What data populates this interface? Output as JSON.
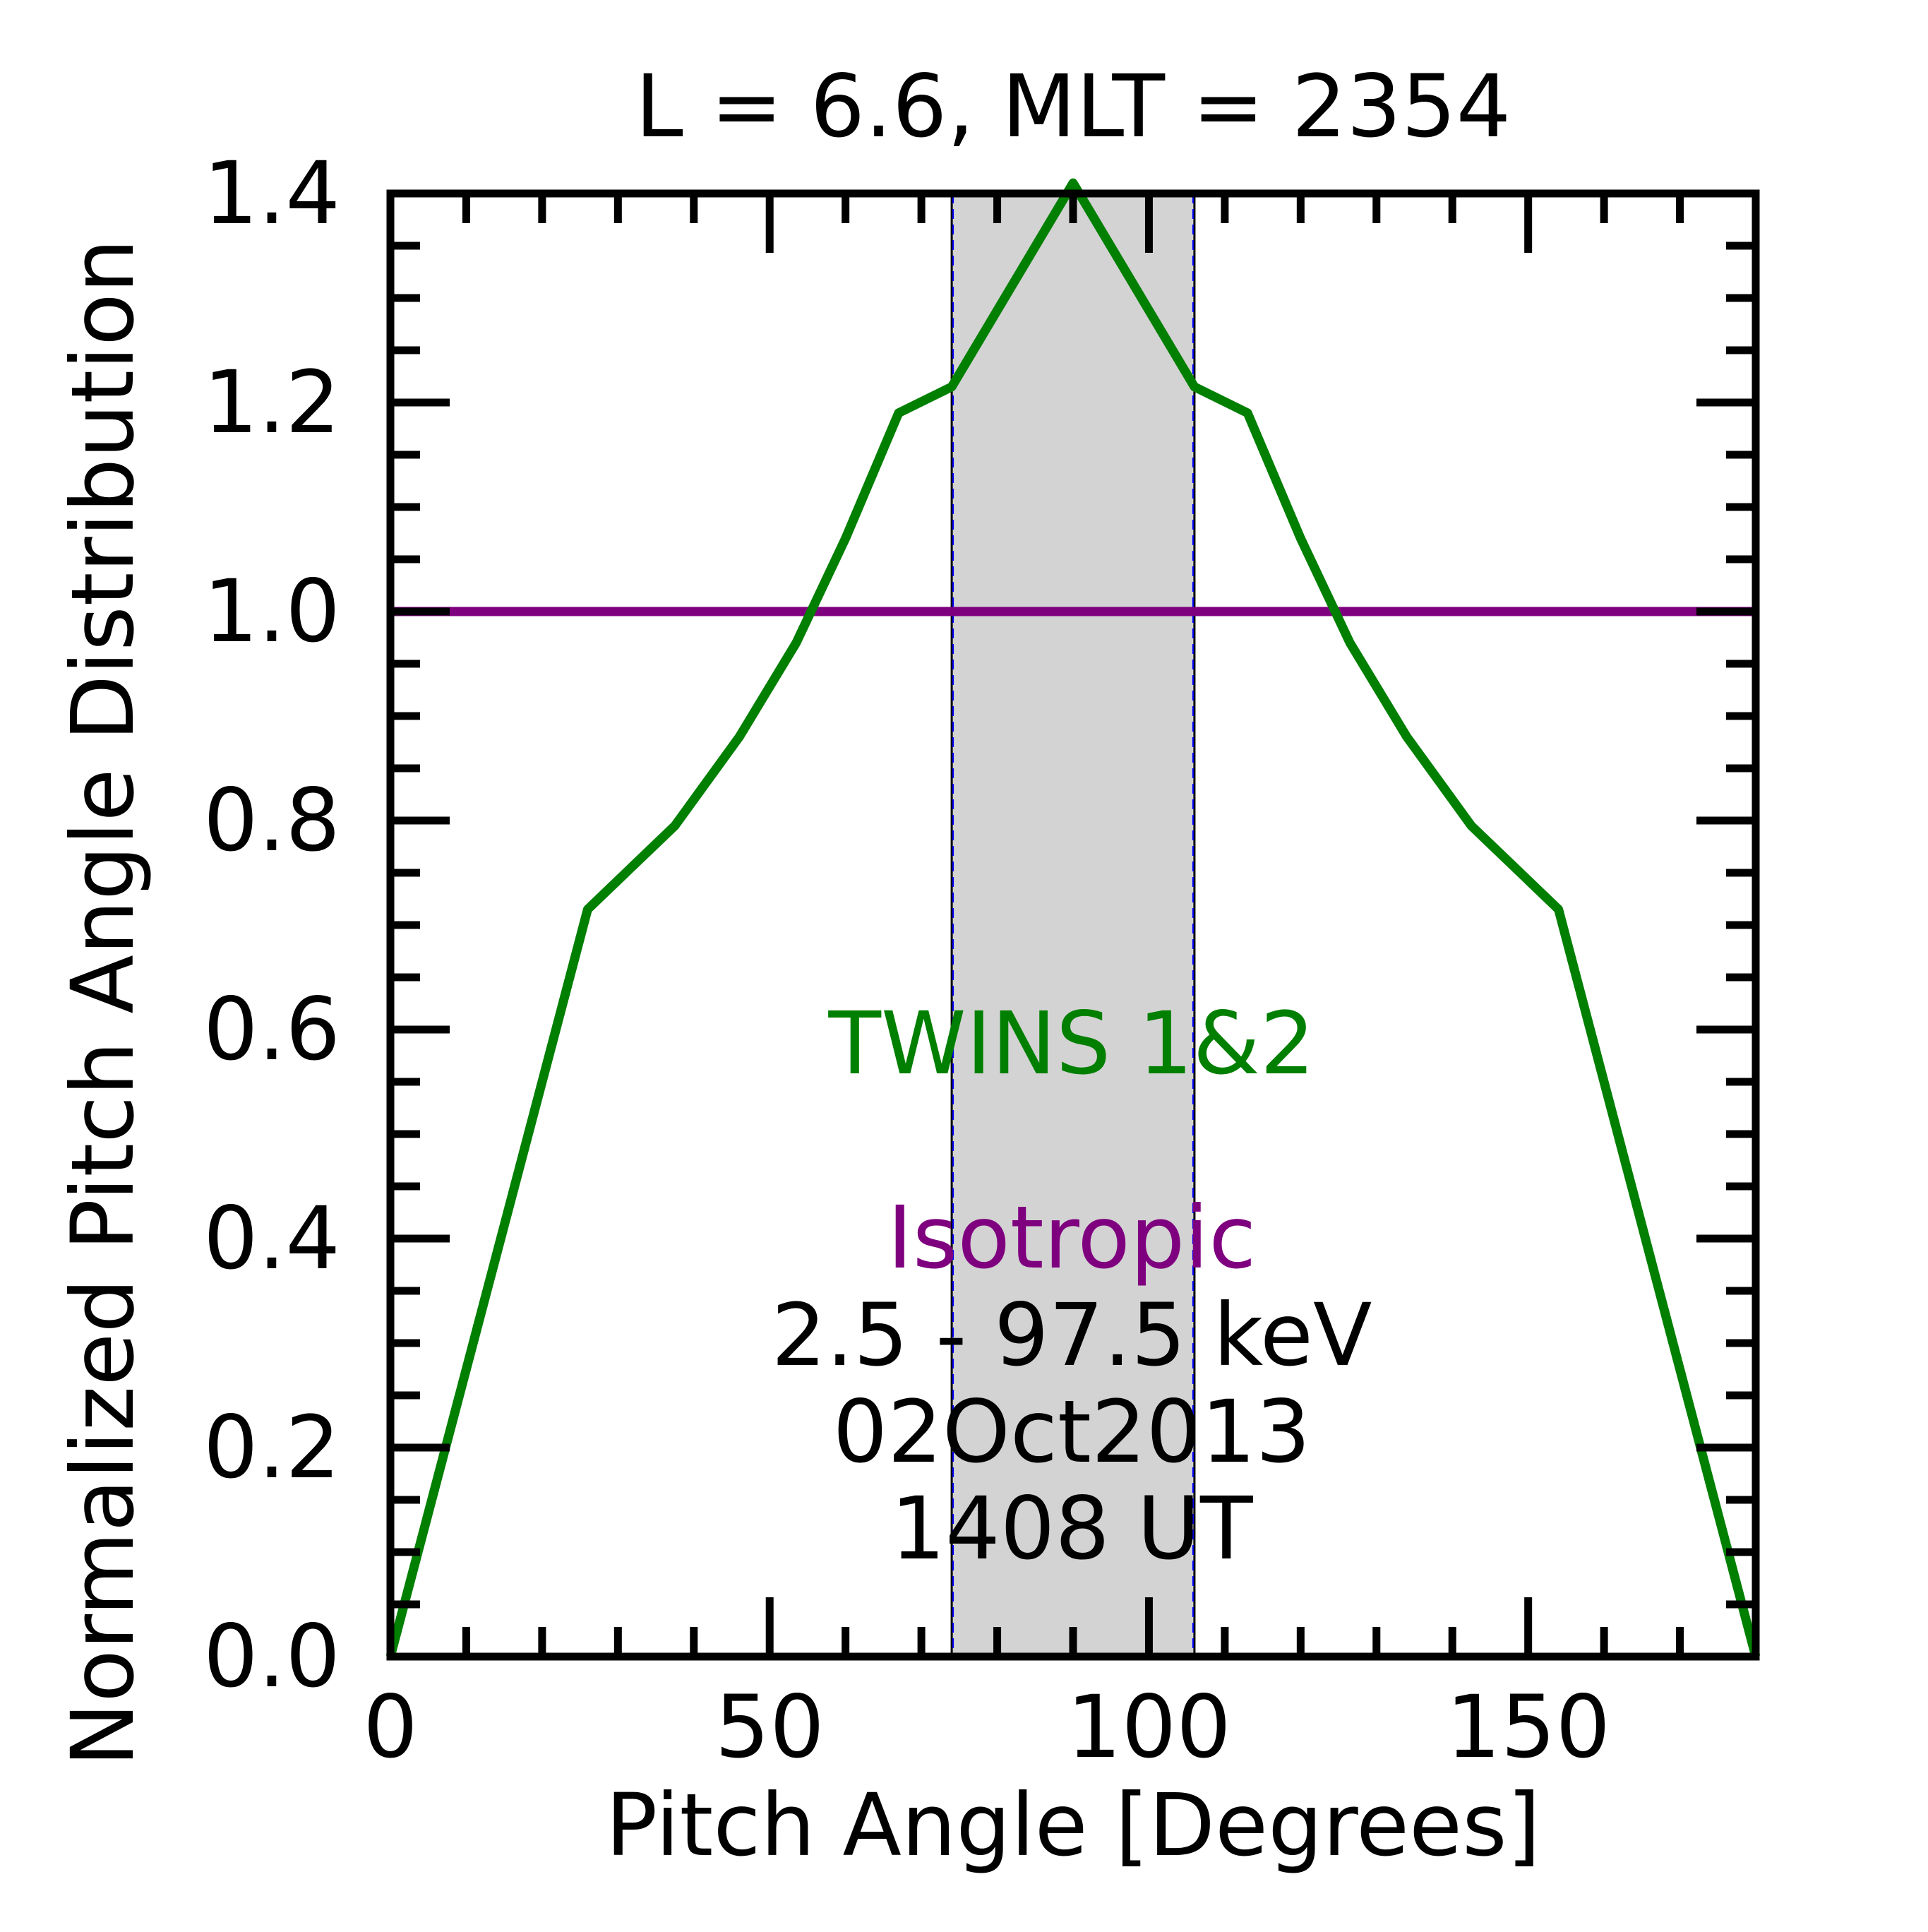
{
  "chart_data": {
    "type": "line",
    "title": "L =  6.6, MLT = 2354",
    "xlabel": "Pitch Angle [Degrees]",
    "ylabel": "Normalized Pitch Angle Distribution",
    "xlim": [
      0,
      180
    ],
    "ylim": [
      0,
      1.4
    ],
    "x_ticks": [
      0,
      50,
      100,
      150
    ],
    "x_tick_labels": [
      "0",
      "50",
      "100",
      "150"
    ],
    "x_minor_step": 10,
    "y_ticks": [
      0.0,
      0.2,
      0.4,
      0.6,
      0.8,
      1.0,
      1.2,
      1.4
    ],
    "y_tick_labels": [
      "0.0",
      "0.2",
      "0.4",
      "0.6",
      "0.8",
      "1.0",
      "1.2",
      "1.4"
    ],
    "y_minor_step": 0.05,
    "grid": false,
    "shaded_band": {
      "x": [
        74,
        106
      ],
      "color": "#d3d3d3"
    },
    "series": [
      {
        "name": "TWINS 1&2",
        "color": "#007f00",
        "x": [
          0,
          26,
          37.5,
          46,
          53.5,
          60,
          67,
          74,
          90,
          106,
          113,
          120,
          126.5,
          134,
          142.5,
          154,
          180
        ],
        "y": [
          0,
          0.715,
          0.795,
          0.88,
          0.97,
          1.07,
          1.19,
          1.215,
          1.41,
          1.215,
          1.19,
          1.07,
          0.97,
          0.88,
          0.795,
          0.715,
          0
        ]
      },
      {
        "name": "Isotropic",
        "color": "#7f007f",
        "x": [
          0,
          180
        ],
        "y": [
          1.0,
          1.0
        ]
      }
    ],
    "annotations": [
      {
        "text": "TWINS 1&2",
        "color": "#007f00"
      },
      {
        "text": "Isotropic",
        "color": "#7f007f"
      },
      {
        "text": "2.5 - 97.5 keV",
        "color": "#000000"
      },
      {
        "text": "02Oct2013",
        "color": "#000000"
      },
      {
        "text": "1408 UT",
        "color": "#000000"
      }
    ]
  }
}
